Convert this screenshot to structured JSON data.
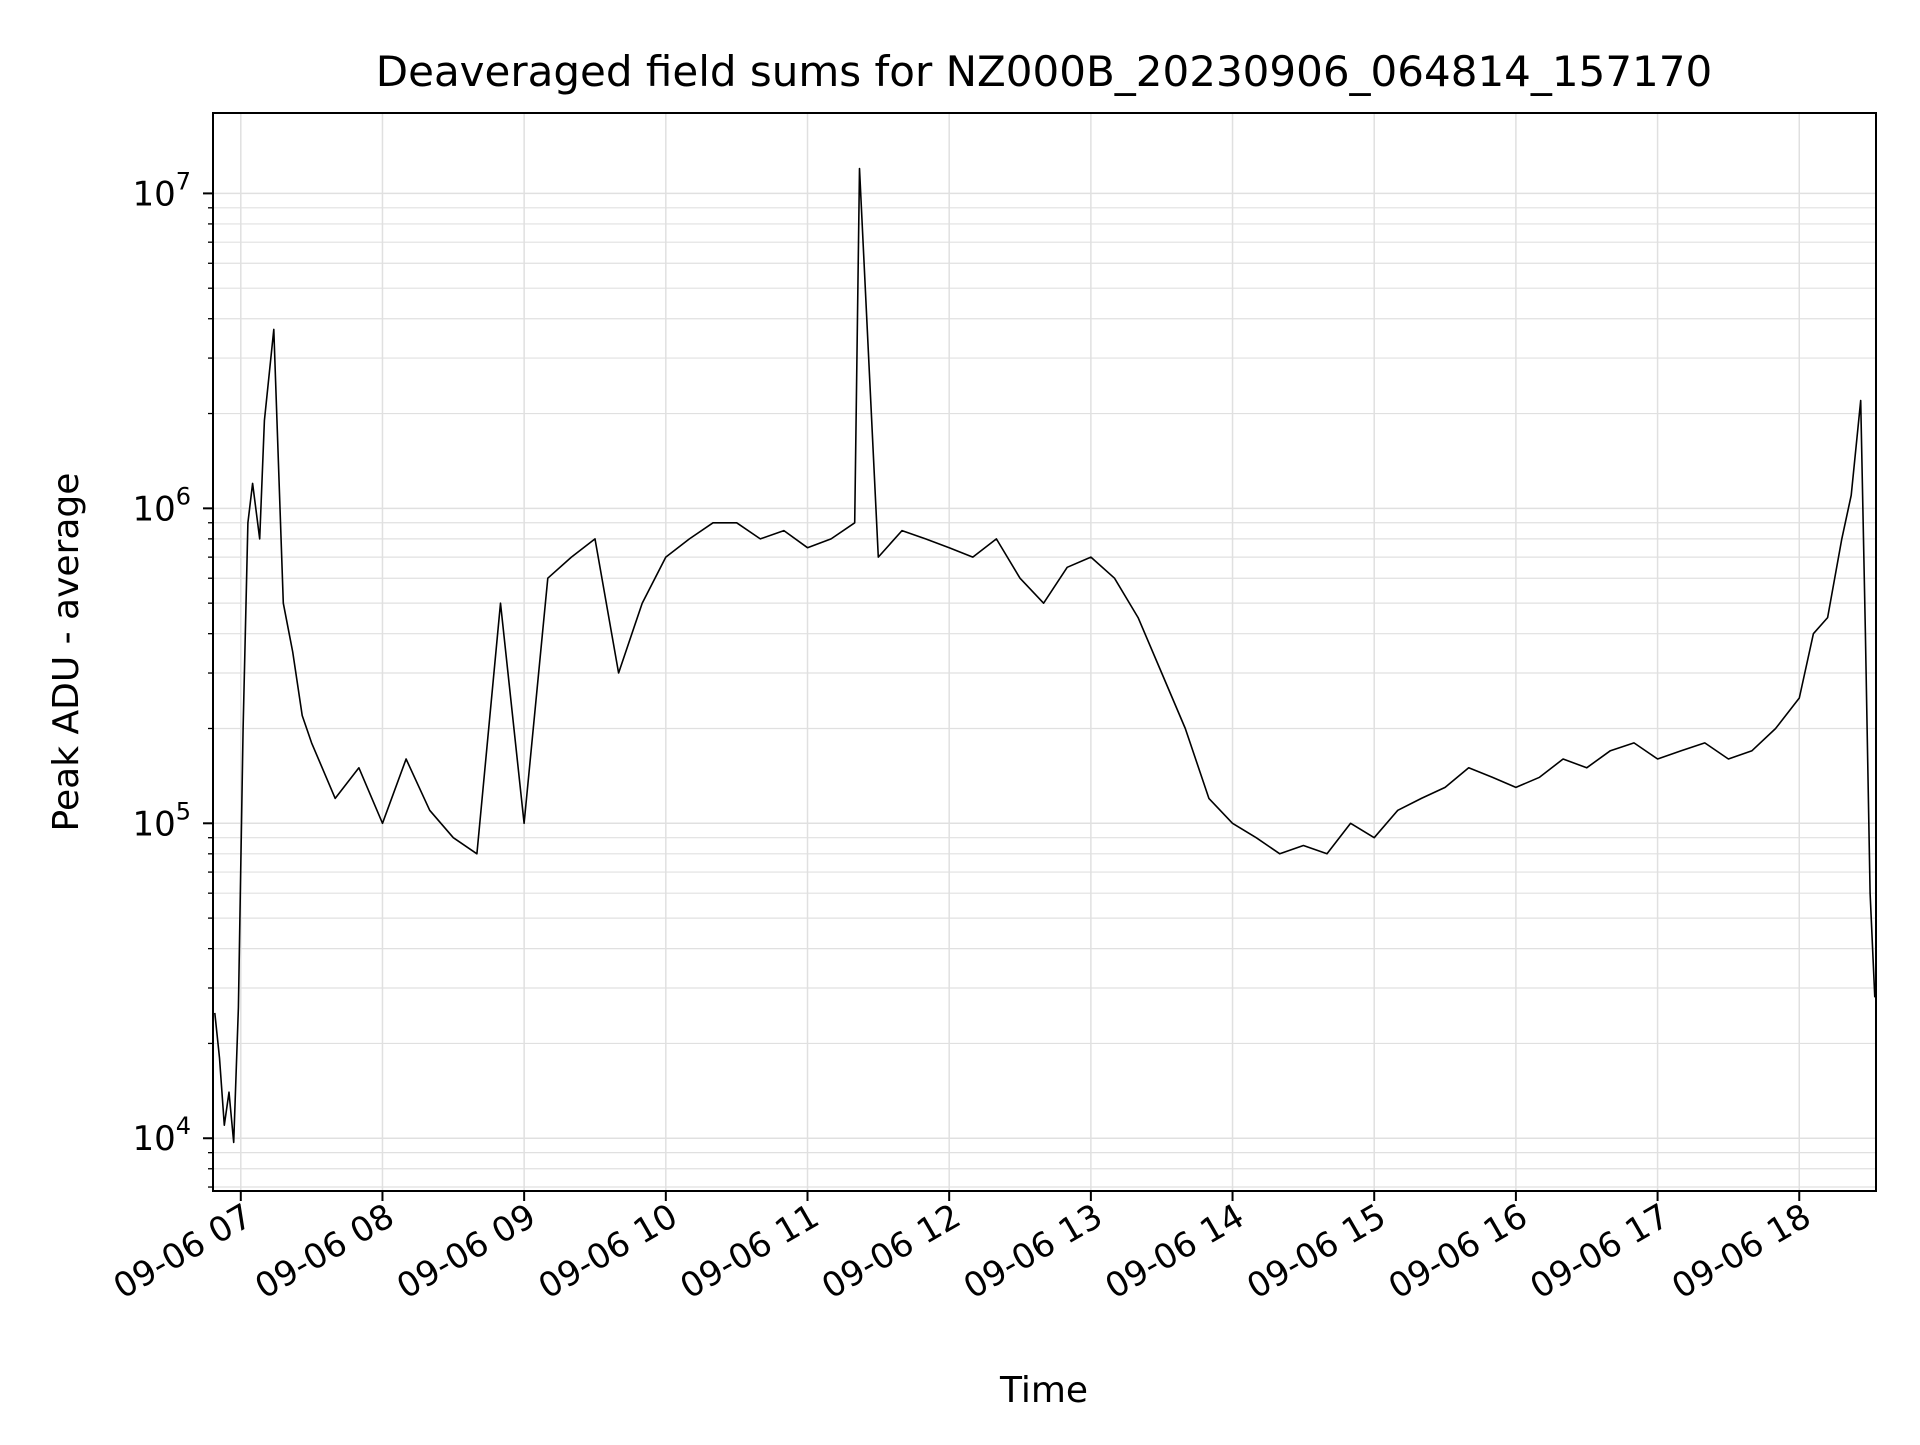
{
  "chart_data": {
    "type": "line",
    "title": "Deaveraged field sums for NZ000B_20230906_064814_157170",
    "xlabel": "Time",
    "ylabel": "Peak ADU - average",
    "y_scale": "log",
    "ylim": [
      6800,
      18000000
    ],
    "xlim": [
      "2023-09-06 06:48:14",
      "2023-09-06 18:32:30"
    ],
    "grid": true,
    "legend": "none",
    "colors": {
      "line": "#000000",
      "grid": "#e0e0e0",
      "axes": "#000000",
      "background": "#ffffff"
    },
    "x_ticks": [
      {
        "value": "2023-09-06 07:00",
        "label": "09-06 07"
      },
      {
        "value": "2023-09-06 08:00",
        "label": "09-06 08"
      },
      {
        "value": "2023-09-06 09:00",
        "label": "09-06 09"
      },
      {
        "value": "2023-09-06 10:00",
        "label": "09-06 10"
      },
      {
        "value": "2023-09-06 11:00",
        "label": "09-06 11"
      },
      {
        "value": "2023-09-06 12:00",
        "label": "09-06 12"
      },
      {
        "value": "2023-09-06 13:00",
        "label": "09-06 13"
      },
      {
        "value": "2023-09-06 14:00",
        "label": "09-06 14"
      },
      {
        "value": "2023-09-06 15:00",
        "label": "09-06 15"
      },
      {
        "value": "2023-09-06 16:00",
        "label": "09-06 16"
      },
      {
        "value": "2023-09-06 17:00",
        "label": "09-06 17"
      },
      {
        "value": "2023-09-06 18:00",
        "label": "09-06 18"
      }
    ],
    "y_ticks": [
      {
        "value": 10000,
        "base": "10",
        "exp": "4"
      },
      {
        "value": 100000,
        "base": "10",
        "exp": "5"
      },
      {
        "value": 1000000,
        "base": "10",
        "exp": "6"
      },
      {
        "value": 10000000,
        "base": "10",
        "exp": "7"
      }
    ],
    "series": [
      {
        "x": [
          "2023-09-06 06:49",
          "2023-09-06 06:51",
          "2023-09-06 06:53",
          "2023-09-06 06:55",
          "2023-09-06 06:57",
          "2023-09-06 06:59",
          "2023-09-06 07:01",
          "2023-09-06 07:03",
          "2023-09-06 07:05",
          "2023-09-06 07:08",
          "2023-09-06 07:10",
          "2023-09-06 07:14",
          "2023-09-06 07:18",
          "2023-09-06 07:22",
          "2023-09-06 07:26",
          "2023-09-06 07:30",
          "2023-09-06 07:40",
          "2023-09-06 07:50",
          "2023-09-06 08:00",
          "2023-09-06 08:10",
          "2023-09-06 08:20",
          "2023-09-06 08:30",
          "2023-09-06 08:40",
          "2023-09-06 08:50",
          "2023-09-06 09:00",
          "2023-09-06 09:10",
          "2023-09-06 09:20",
          "2023-09-06 09:30",
          "2023-09-06 09:40",
          "2023-09-06 09:50",
          "2023-09-06 10:00",
          "2023-09-06 10:10",
          "2023-09-06 10:20",
          "2023-09-06 10:30",
          "2023-09-06 10:40",
          "2023-09-06 10:50",
          "2023-09-06 11:00",
          "2023-09-06 11:10",
          "2023-09-06 11:20",
          "2023-09-06 11:22",
          "2023-09-06 11:30",
          "2023-09-06 11:40",
          "2023-09-06 11:50",
          "2023-09-06 12:00",
          "2023-09-06 12:10",
          "2023-09-06 12:20",
          "2023-09-06 12:30",
          "2023-09-06 12:40",
          "2023-09-06 12:50",
          "2023-09-06 13:00",
          "2023-09-06 13:10",
          "2023-09-06 13:20",
          "2023-09-06 13:30",
          "2023-09-06 13:40",
          "2023-09-06 13:50",
          "2023-09-06 14:00",
          "2023-09-06 14:10",
          "2023-09-06 14:20",
          "2023-09-06 14:30",
          "2023-09-06 14:40",
          "2023-09-06 14:50",
          "2023-09-06 15:00",
          "2023-09-06 15:10",
          "2023-09-06 15:20",
          "2023-09-06 15:30",
          "2023-09-06 15:40",
          "2023-09-06 15:50",
          "2023-09-06 16:00",
          "2023-09-06 16:10",
          "2023-09-06 16:20",
          "2023-09-06 16:30",
          "2023-09-06 16:40",
          "2023-09-06 16:50",
          "2023-09-06 17:00",
          "2023-09-06 17:10",
          "2023-09-06 17:20",
          "2023-09-06 17:30",
          "2023-09-06 17:40",
          "2023-09-06 17:50",
          "2023-09-06 18:00",
          "2023-09-06 18:06",
          "2023-09-06 18:12",
          "2023-09-06 18:18",
          "2023-09-06 18:22",
          "2023-09-06 18:26",
          "2023-09-06 18:28",
          "2023-09-06 18:30",
          "2023-09-06 18:32"
        ],
        "y": [
          25000,
          18000,
          11000,
          14000,
          9700,
          26000,
          200000,
          900000,
          1200000,
          800000,
          1900000,
          3700000,
          500000,
          350000,
          220000,
          180000,
          120000,
          150000,
          100000,
          160000,
          110000,
          90000,
          80000,
          500000,
          100000,
          600000,
          700000,
          800000,
          300000,
          500000,
          700000,
          800000,
          900000,
          900000,
          800000,
          850000,
          750000,
          800000,
          900000,
          12000000,
          700000,
          850000,
          800000,
          750000,
          700000,
          800000,
          600000,
          500000,
          650000,
          700000,
          600000,
          450000,
          300000,
          200000,
          120000,
          100000,
          90000,
          80000,
          85000,
          80000,
          100000,
          90000,
          110000,
          120000,
          130000,
          150000,
          140000,
          130000,
          140000,
          160000,
          150000,
          170000,
          180000,
          160000,
          170000,
          180000,
          160000,
          170000,
          200000,
          250000,
          400000,
          450000,
          800000,
          1100000,
          2200000,
          400000,
          60000,
          28000
        ]
      }
    ]
  }
}
